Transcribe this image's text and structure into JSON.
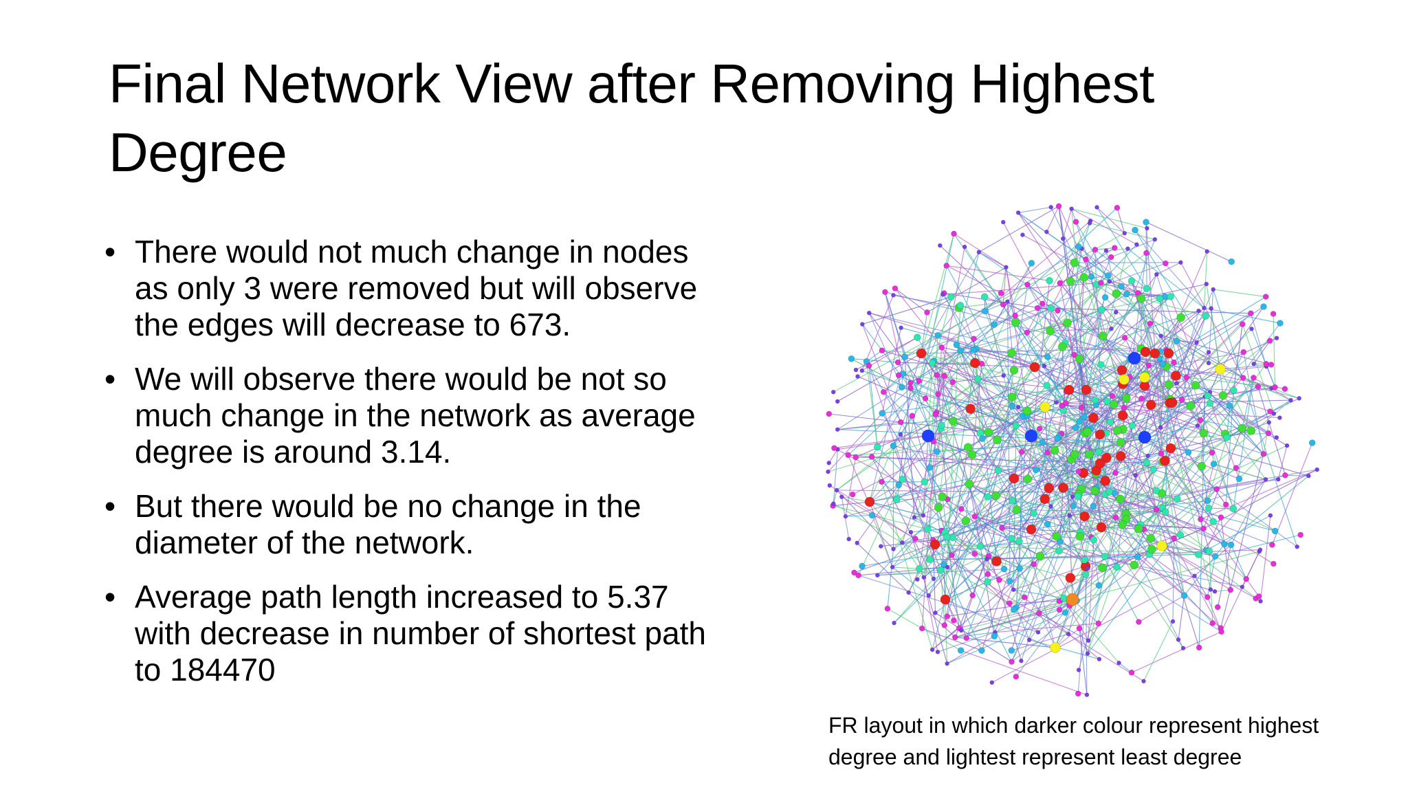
{
  "slide": {
    "title": "Final Network View after Removing Highest Degree",
    "bullets": [
      "There would not much change in nodes as only 3 were removed but will observe the edges will decrease to 673.",
      "We will observe there would be not so much change in the network as average degree is around 3.14.",
      "But there would be no change in the diameter of the network.",
      "Average path length increased to 5.37 with decrease in number of shortest path to 184470"
    ],
    "bullet_symbol": "•",
    "caption": "FR layout in which darker colour represent highest degree and lightest represent least degree"
  },
  "network": {
    "layout": "FR",
    "node_colors": {
      "highest": "#1f3fff",
      "high": "#e8231f",
      "mid_high": "#f08a24",
      "mid": "#f4f21a",
      "mid_low": "#3fe033",
      "low": "#2fe6b0",
      "lower": "#2ab7e6",
      "least": "#e62fd6",
      "lightest": "#7a3fe6"
    },
    "edge_colors": [
      "#7b5cc9",
      "#3aa6c9",
      "#5ac97a",
      "#b35cc9",
      "#6f8cd6"
    ]
  }
}
